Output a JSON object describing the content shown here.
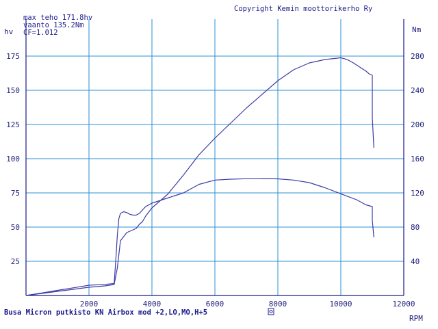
{
  "header": {
    "copyright": "Copyright Kemin moottorikerho Ry",
    "max_power": "max teho 171.8hv",
    "max_torque": "vaanto 135.2Nm",
    "cf": "CF=1.012"
  },
  "footer": {
    "run_label": "Busa Micron putkisto KN Airbox mod +2,LO,MO,H+5"
  },
  "chart_data": {
    "type": "line",
    "title": "",
    "xlabel": "RPM",
    "ylabel_left": "hv",
    "ylabel_right": "Nm",
    "xlim": [
      0,
      12000
    ],
    "ylim_left": [
      0,
      200
    ],
    "ylim_right": [
      0,
      320
    ],
    "grid": true,
    "x_ticks": [
      "2000",
      "4000",
      "6000",
      "8000",
      "10000",
      "12000"
    ],
    "y_ticks_left": [
      "25",
      "50",
      "75",
      "100",
      "125",
      "150",
      "175"
    ],
    "y_ticks_right": [
      "40",
      "80",
      "120",
      "160",
      "200",
      "240",
      "280"
    ],
    "series": [
      {
        "axis": "left",
        "color": "#3a3aa6",
        "x": [
          0,
          500,
          1000,
          1500,
          2000,
          2500,
          2800,
          2900,
          2950,
          3000,
          3100,
          3200,
          3300,
          3400,
          3500,
          3600,
          3700,
          3800,
          4000,
          4500,
          5000,
          5500,
          6000,
          6500,
          7000,
          7500,
          8000,
          8500,
          9000,
          9500,
          9900,
          10000,
          10200,
          10400,
          10600,
          10800,
          10900,
          11000,
          11000,
          11050
        ],
        "y": [
          0,
          1.5,
          3,
          4.5,
          6,
          7,
          8,
          20,
          30,
          40,
          43,
          46,
          47,
          48,
          49,
          52,
          54,
          58,
          64,
          74,
          88,
          103,
          115,
          126,
          137,
          147,
          157,
          165,
          170,
          172.5,
          173.5,
          173.8,
          172.5,
          170,
          167,
          164,
          162,
          161,
          130,
          108
        ]
      },
      {
        "axis": "right",
        "color": "#3a3aa6",
        "x": [
          0,
          500,
          1000,
          1500,
          2000,
          2500,
          2800,
          2850,
          2900,
          2950,
          3000,
          3100,
          3200,
          3300,
          3400,
          3500,
          3600,
          3700,
          3800,
          4000,
          4500,
          5000,
          5500,
          6000,
          6500,
          7000,
          7500,
          8000,
          8500,
          9000,
          9500,
          10000,
          10500,
          10800,
          11000,
          11000,
          11050
        ],
        "y": [
          0,
          3,
          6,
          9,
          12,
          13,
          14,
          40,
          70,
          90,
          96,
          98,
          97,
          95,
          94,
          94,
          96,
          100,
          104,
          108,
          114,
          120,
          130,
          135,
          136,
          136.6,
          136.9,
          136.4,
          135,
          132,
          126,
          119,
          112,
          106,
          104,
          88,
          68
        ]
      }
    ]
  }
}
